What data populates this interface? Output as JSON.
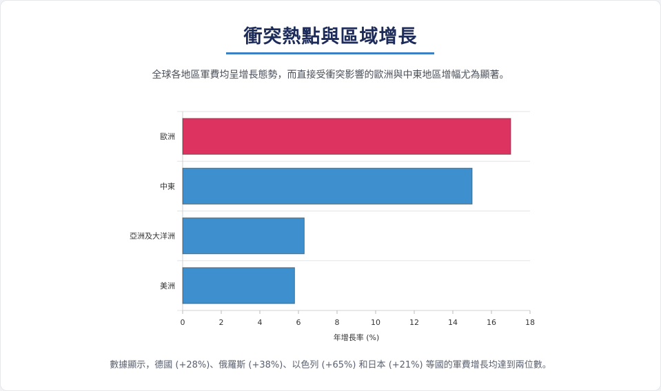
{
  "header": {
    "title": "衝突熱點與區域增長",
    "subtitle": "全球各地區軍費均呈增長態勢，而直接受衝突影響的歐洲與中東地區增幅尤為顯著。"
  },
  "footer": {
    "note": "數據顯示，德國 (+28%)、俄羅斯 (+38%)、以色列 (+65%) 和日本 (+21%) 等國的軍費增長均達到兩位數。"
  },
  "chart_data": {
    "type": "bar",
    "orientation": "horizontal",
    "categories": [
      "歐洲",
      "中東",
      "亞洲及大洋洲",
      "美洲"
    ],
    "values": [
      17.0,
      15.0,
      6.3,
      5.8
    ],
    "colors": [
      "#dc3360",
      "#3d90cd",
      "#3d90cd",
      "#3d90cd"
    ],
    "xlabel": "年增長率 (%)",
    "ylabel": "",
    "xlim": [
      0,
      18
    ],
    "xticks": [
      0,
      2,
      4,
      6,
      8,
      10,
      12,
      14,
      16,
      18
    ],
    "grid": true
  }
}
